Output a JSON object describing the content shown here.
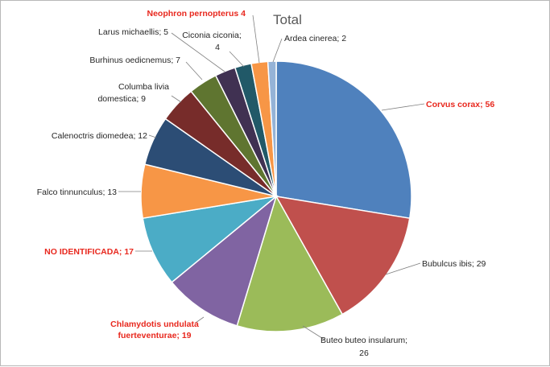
{
  "chart_data": {
    "type": "pie",
    "title": "Total",
    "grid": false,
    "legend": "none",
    "start": "12 o'clock, clockwise",
    "slices": [
      {
        "label": "Corvus corax",
        "value": 56,
        "text": "Corvus corax; 56",
        "color": "#4f81bd",
        "highlight": true
      },
      {
        "label": "Bubulcus ibis",
        "value": 29,
        "text": "Bubulcus ibis; 29",
        "color": "#c0504d",
        "highlight": false
      },
      {
        "label": "Buteo buteo insularum",
        "value": 26,
        "text": "Buteo buteo insularum; 26",
        "color": "#9bbb59",
        "highlight": false
      },
      {
        "label": "Chlamydotis undulata fuerteventurae",
        "value": 19,
        "text": "Chlamydotis undulata fuerteventurae; 19",
        "color": "#8064a2",
        "highlight": true
      },
      {
        "label": "NO IDENTIFICADA",
        "value": 17,
        "text": "NO IDENTIFICADA; 17",
        "color": "#4bacc6",
        "highlight": true
      },
      {
        "label": "Falco tinnunculus",
        "value": 13,
        "text": "Falco tinnunculus; 13",
        "color": "#f79646",
        "highlight": false
      },
      {
        "label": "Calenoctris diomedea",
        "value": 12,
        "text": "Calenoctris diomedea; 12",
        "color": "#2c4d75",
        "highlight": false
      },
      {
        "label": "Columba livia domestica",
        "value": 9,
        "text": "Columba livia domestica; 9",
        "color": "#772c2a",
        "highlight": false
      },
      {
        "label": "Burhinus oedicnemus",
        "value": 7,
        "text": "Burhinus oedicnemus; 7",
        "color": "#5f7530",
        "highlight": false
      },
      {
        "label": "Larus michaellis",
        "value": 5,
        "text": "Larus michaellis; 5",
        "color": "#403152",
        "highlight": false
      },
      {
        "label": "Ciconia ciconia",
        "value": 4,
        "text": "Ciconia ciconia; 4",
        "color": "#215968",
        "highlight": false
      },
      {
        "label": "Neophron pernopterus",
        "value": 4,
        "text": "Neophron pernopterus 4",
        "color": "#f79646",
        "highlight": true
      },
      {
        "label": "Ardea cinerea",
        "value": 2,
        "text": "Ardea cinerea; 2",
        "color": "#95b3d7",
        "highlight": false
      }
    ]
  }
}
